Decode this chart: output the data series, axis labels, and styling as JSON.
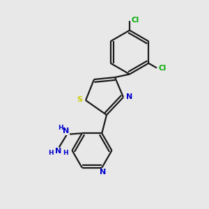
{
  "background_color": "#e8e8e8",
  "bond_color": "#1a1a1a",
  "atom_colors": {
    "S": "#cccc00",
    "N": "#0000cd",
    "Cl": "#00aa00",
    "C": "#1a1a1a",
    "H": "#0000cd"
  },
  "figsize": [
    3.0,
    3.0
  ],
  "dpi": 100,
  "xlim": [
    0,
    10
  ],
  "ylim": [
    0,
    10
  ],
  "lw": 1.6,
  "dbond_sep": 0.13,
  "font_size_atom": 7.5
}
